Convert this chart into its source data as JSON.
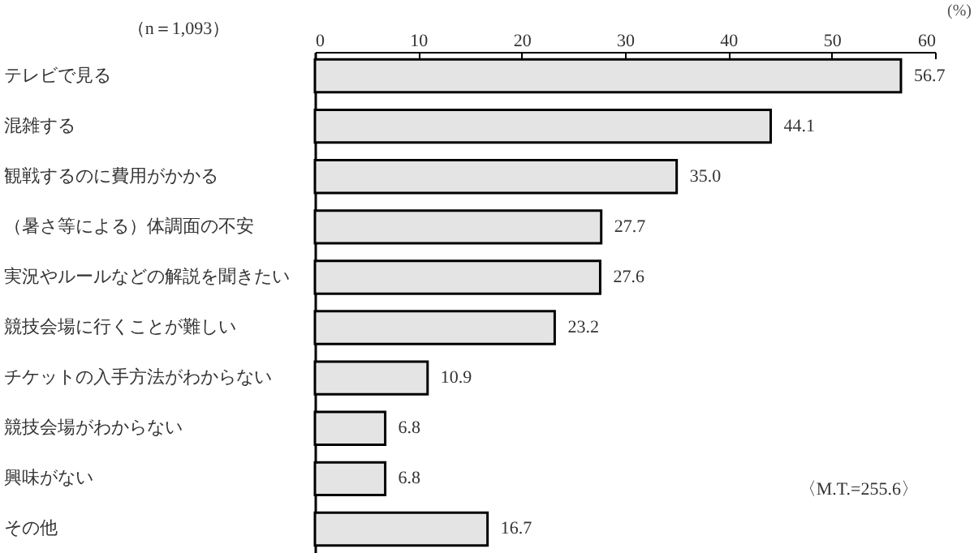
{
  "chart_data": {
    "type": "bar",
    "orientation": "horizontal",
    "xlabel": "(%)",
    "categories": [
      "テレビで見る",
      "混雑する",
      "観戦するのに費用がかかる",
      "（暑さ等による）体調面の不安",
      "実況やルールなどの解説を聞きたい",
      "競技会場に行くことが難しい",
      "チケットの入手方法がわからない",
      "競技会場がわからない",
      "興味がない",
      "その他"
    ],
    "values": [
      56.7,
      44.1,
      35.0,
      27.7,
      27.6,
      23.2,
      10.9,
      6.8,
      6.8,
      16.7
    ],
    "value_labels": [
      "56.7",
      "44.1",
      "35.0",
      "27.7",
      "27.6",
      "23.2",
      "10.9",
      "6.8",
      "6.8",
      "16.7"
    ],
    "color": "#e4e4e4",
    "xlim": [
      0,
      60
    ],
    "xticks": [
      0,
      10,
      20,
      30,
      40,
      50,
      60
    ],
    "grid": false,
    "annotations": [
      "（n＝1,093）",
      "〈M.T.=255.6〉"
    ]
  }
}
